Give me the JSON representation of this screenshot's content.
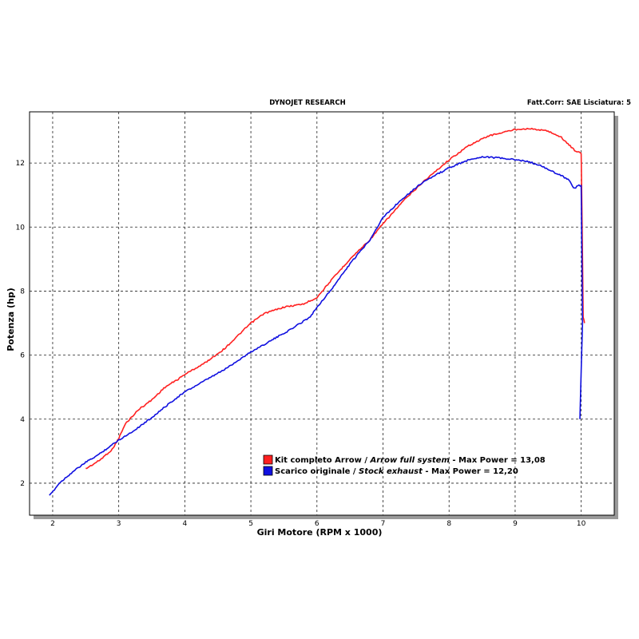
{
  "header": {
    "title": "DYNOJET RESEARCH",
    "right_info": "Fatt.Corr: SAE  Lisciatura: 5"
  },
  "colors": {
    "arrow": "#ff2020",
    "stock": "#1010e0"
  },
  "chart_data": {
    "type": "line",
    "title": "",
    "xlabel": "Giri Motore (RPM x 1000)",
    "ylabel": "Potenza (hp)",
    "xlim": [
      1.65,
      10.5
    ],
    "ylim": [
      1.0,
      13.6
    ],
    "x_ticks": [
      2,
      3,
      4,
      5,
      6,
      7,
      8,
      9,
      10
    ],
    "y_ticks": [
      2,
      4,
      6,
      8,
      10,
      12
    ],
    "grid": true,
    "legend_position": "lower-center",
    "series": [
      {
        "name": "Kit completo Arrow / Arrow full system - Max Power = 13,08",
        "legend": {
          "main": "Kit completo Arrow / ",
          "italic": "Arrow full system",
          "tail": " - Max Power = 13,08"
        },
        "color": "#ff2020",
        "x": [
          2.5,
          2.7,
          2.9,
          3.0,
          3.1,
          3.3,
          3.5,
          3.7,
          3.9,
          4.0,
          4.3,
          4.6,
          4.9,
          5.0,
          5.2,
          5.5,
          5.8,
          6.0,
          6.2,
          6.5,
          6.8,
          7.0,
          7.3,
          7.6,
          8.0,
          8.3,
          8.6,
          9.0,
          9.2,
          9.5,
          9.7,
          9.8,
          9.9,
          10.0,
          10.02,
          10.03,
          10.05
        ],
        "y": [
          2.45,
          2.7,
          3.05,
          3.4,
          3.85,
          4.3,
          4.6,
          5.0,
          5.25,
          5.4,
          5.75,
          6.2,
          6.8,
          7.0,
          7.3,
          7.5,
          7.6,
          7.8,
          8.3,
          9.0,
          9.6,
          10.1,
          10.8,
          11.4,
          12.1,
          12.55,
          12.85,
          13.05,
          13.08,
          13.0,
          12.8,
          12.6,
          12.4,
          12.3,
          9.0,
          7.2,
          7.0
        ]
      },
      {
        "name": "Scarico originale / Stock exhaust - Max Power = 12,20",
        "legend": {
          "main": "Scarico originale / ",
          "italic": "Stock exhaust",
          "tail": " - Max Power = 12,20"
        },
        "color": "#1010e0",
        "x": [
          1.95,
          2.1,
          2.3,
          2.5,
          2.7,
          3.0,
          3.2,
          3.5,
          3.8,
          4.0,
          4.3,
          4.6,
          5.0,
          5.3,
          5.6,
          5.9,
          6.0,
          6.2,
          6.5,
          6.8,
          7.0,
          7.3,
          7.6,
          8.0,
          8.3,
          8.5,
          8.8,
          9.0,
          9.2,
          9.4,
          9.6,
          9.8,
          9.9,
          9.95,
          10.0,
          10.02,
          9.98
        ],
        "y": [
          1.6,
          2.0,
          2.35,
          2.65,
          2.9,
          3.35,
          3.6,
          4.05,
          4.55,
          4.85,
          5.2,
          5.55,
          6.1,
          6.45,
          6.8,
          7.2,
          7.5,
          8.0,
          8.85,
          9.6,
          10.3,
          10.9,
          11.4,
          11.85,
          12.1,
          12.2,
          12.15,
          12.1,
          12.05,
          11.9,
          11.7,
          11.5,
          11.2,
          11.3,
          11.3,
          7.0,
          4.0
        ]
      }
    ]
  }
}
